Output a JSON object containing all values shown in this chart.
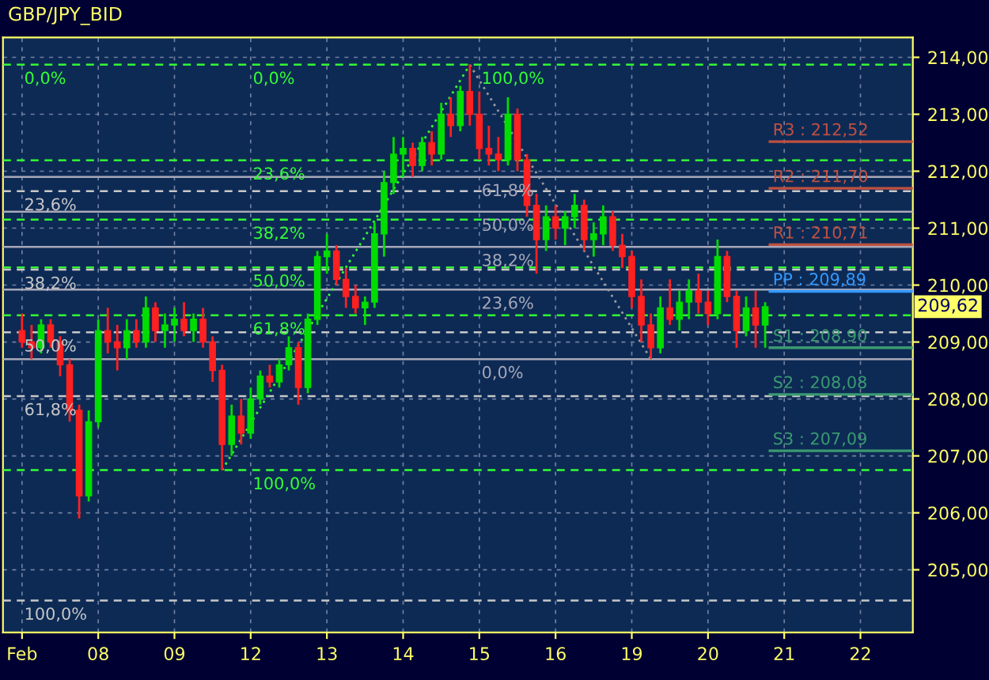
{
  "chart_data": {
    "type": "candlestick",
    "title": "GBP/JPY_BID",
    "categories": [
      "Feb",
      null,
      null,
      null,
      null,
      null,
      null,
      null,
      "08",
      null,
      null,
      null,
      null,
      null,
      null,
      null,
      "09",
      null,
      null,
      null,
      null,
      null,
      null,
      null,
      "12",
      null,
      null,
      null,
      null,
      null,
      null,
      null,
      "13",
      null,
      null,
      null,
      null,
      null,
      null,
      null,
      "14",
      null,
      null,
      null,
      null,
      null,
      null,
      null,
      "15",
      null,
      null,
      null,
      null,
      null,
      null,
      null,
      "16",
      null,
      null,
      null,
      null,
      null,
      null,
      null,
      "19",
      null,
      null,
      null,
      null,
      null,
      null,
      null,
      "20",
      null,
      null,
      null,
      null,
      null,
      null,
      null,
      "21",
      null,
      null,
      null,
      null,
      null,
      null,
      null,
      "22",
      null,
      null,
      null,
      null,
      null
    ],
    "ohlc": [
      [
        209.2,
        209.5,
        208.9,
        209.0
      ],
      [
        209.0,
        209.3,
        208.7,
        208.9
      ],
      [
        208.9,
        209.4,
        208.8,
        209.3
      ],
      [
        209.3,
        209.4,
        208.9,
        209.0
      ],
      [
        209.0,
        209.1,
        208.4,
        208.6
      ],
      [
        208.6,
        208.7,
        207.6,
        207.8
      ],
      [
        207.8,
        207.9,
        205.9,
        206.3
      ],
      [
        206.3,
        207.8,
        206.2,
        207.6
      ],
      [
        207.6,
        209.4,
        207.5,
        209.2
      ],
      [
        209.2,
        209.6,
        208.8,
        209.0
      ],
      [
        209.0,
        209.3,
        208.5,
        208.9
      ],
      [
        208.9,
        209.4,
        208.7,
        209.2
      ],
      [
        209.2,
        209.4,
        208.9,
        209.0
      ],
      [
        209.0,
        209.8,
        208.9,
        209.6
      ],
      [
        209.6,
        209.7,
        209.0,
        209.2
      ],
      [
        209.2,
        209.5,
        208.9,
        209.3
      ],
      [
        209.3,
        209.6,
        209.0,
        209.4
      ],
      [
        209.4,
        209.7,
        209.1,
        209.2
      ],
      [
        209.2,
        209.5,
        209.0,
        209.4
      ],
      [
        209.4,
        209.6,
        208.9,
        209.0
      ],
      [
        209.0,
        209.1,
        208.3,
        208.5
      ],
      [
        208.5,
        208.6,
        206.75,
        207.2
      ],
      [
        207.2,
        207.9,
        207.0,
        207.7
      ],
      [
        207.7,
        208.0,
        207.2,
        207.4
      ],
      [
        207.4,
        208.2,
        207.3,
        208.0
      ],
      [
        208.0,
        208.5,
        207.9,
        208.4
      ],
      [
        208.4,
        208.6,
        208.2,
        208.3
      ],
      [
        208.3,
        208.7,
        208.2,
        208.6
      ],
      [
        208.6,
        209.1,
        208.5,
        208.9
      ],
      [
        208.9,
        209.0,
        207.9,
        208.2
      ],
      [
        208.2,
        209.5,
        208.1,
        209.4
      ],
      [
        209.4,
        210.6,
        209.3,
        210.5
      ],
      [
        210.5,
        210.9,
        210.2,
        210.6
      ],
      [
        210.6,
        210.7,
        210.0,
        210.1
      ],
      [
        210.1,
        210.3,
        209.6,
        209.8
      ],
      [
        209.8,
        210.0,
        209.5,
        209.6
      ],
      [
        209.6,
        209.8,
        209.3,
        209.7
      ],
      [
        209.7,
        211.1,
        209.6,
        210.9
      ],
      [
        210.9,
        212.0,
        210.5,
        211.8
      ],
      [
        211.8,
        212.6,
        211.6,
        212.3
      ],
      [
        212.3,
        212.6,
        211.9,
        212.4
      ],
      [
        212.4,
        212.5,
        211.9,
        212.1
      ],
      [
        212.1,
        212.6,
        212.0,
        212.5
      ],
      [
        212.5,
        212.7,
        212.1,
        212.3
      ],
      [
        212.3,
        213.2,
        212.2,
        213.0
      ],
      [
        213.0,
        213.3,
        212.6,
        212.8
      ],
      [
        212.8,
        213.5,
        212.7,
        213.4
      ],
      [
        213.4,
        213.87,
        212.8,
        213.0
      ],
      [
        213.0,
        213.4,
        212.2,
        212.4
      ],
      [
        212.4,
        212.8,
        212.1,
        212.3
      ],
      [
        212.3,
        212.6,
        212.0,
        212.2
      ],
      [
        212.2,
        213.3,
        212.1,
        213.0
      ],
      [
        213.0,
        213.1,
        212.0,
        212.2
      ],
      [
        212.2,
        212.3,
        211.2,
        211.4
      ],
      [
        211.4,
        211.6,
        210.2,
        210.8
      ],
      [
        210.8,
        211.4,
        210.6,
        211.2
      ],
      [
        211.2,
        211.4,
        210.8,
        211.0
      ],
      [
        211.0,
        211.3,
        210.7,
        211.2
      ],
      [
        211.2,
        211.6,
        211.0,
        211.4
      ],
      [
        211.4,
        211.5,
        210.6,
        210.8
      ],
      [
        210.8,
        211.1,
        210.5,
        210.9
      ],
      [
        210.9,
        211.4,
        210.7,
        211.2
      ],
      [
        211.2,
        211.3,
        210.6,
        210.7
      ],
      [
        210.7,
        210.9,
        210.3,
        210.5
      ],
      [
        210.5,
        210.6,
        209.6,
        209.8
      ],
      [
        209.8,
        210.1,
        209.0,
        209.3
      ],
      [
        209.3,
        209.5,
        208.7,
        208.9
      ],
      [
        208.9,
        209.8,
        208.8,
        209.6
      ],
      [
        209.6,
        210.1,
        209.3,
        209.4
      ],
      [
        209.4,
        209.9,
        209.2,
        209.7
      ],
      [
        209.7,
        210.1,
        209.4,
        209.9
      ],
      [
        209.9,
        210.2,
        209.5,
        209.7
      ],
      [
        209.7,
        209.9,
        209.3,
        209.5
      ],
      [
        209.5,
        210.8,
        209.4,
        210.5
      ],
      [
        210.5,
        210.6,
        209.7,
        209.8
      ],
      [
        209.8,
        209.9,
        208.9,
        209.2
      ],
      [
        209.2,
        209.8,
        209.1,
        209.6
      ],
      [
        209.6,
        209.9,
        208.9,
        209.3
      ],
      [
        209.3,
        209.7,
        208.9,
        209.62
      ],
      null,
      null,
      null,
      null,
      null,
      null,
      null,
      null,
      null,
      null,
      null,
      null,
      null,
      null,
      null
    ],
    "colors": [
      "#ff2020",
      "#ff2020",
      "#00dd00",
      "#ff2020",
      "#ff2020",
      "#ff2020",
      "#ff2020",
      "#00dd00",
      "#00dd00",
      "#ff2020",
      "#ff2020",
      "#00dd00",
      "#ff2020",
      "#00dd00",
      "#ff2020",
      "#00dd00",
      "#00dd00",
      "#ff2020",
      "#00dd00",
      "#ff2020",
      "#ff2020",
      "#ff2020",
      "#00dd00",
      "#ff2020",
      "#00dd00",
      "#00dd00",
      "#ff2020",
      "#00dd00",
      "#00dd00",
      "#ff2020",
      "#00dd00",
      "#00dd00",
      "#00dd00",
      "#ff2020",
      "#ff2020",
      "#ff2020",
      "#00dd00",
      "#00dd00",
      "#00dd00",
      "#00dd00",
      "#00dd00",
      "#ff2020",
      "#00dd00",
      "#ff2020",
      "#00dd00",
      "#ff2020",
      "#00dd00",
      "#ff2020",
      "#ff2020",
      "#ff2020",
      "#ff2020",
      "#00dd00",
      "#ff2020",
      "#ff2020",
      "#ff2020",
      "#00dd00",
      "#ff2020",
      "#00dd00",
      "#00dd00",
      "#ff2020",
      "#00dd00",
      "#00dd00",
      "#ff2020",
      "#ff2020",
      "#ff2020",
      "#ff2020",
      "#ff2020",
      "#00dd00",
      "#ff2020",
      "#00dd00",
      "#00dd00",
      "#ff2020",
      "#ff2020",
      "#00dd00",
      "#ff2020",
      "#ff2020",
      "#00dd00",
      "#ff2020",
      "#00dd00",
      null,
      null,
      null,
      null,
      null,
      null,
      null,
      null,
      null,
      null,
      null,
      null,
      null,
      null,
      null
    ],
    "value_labels": [
      null,
      null,
      null,
      null,
      null,
      null,
      null,
      null,
      null,
      null,
      null,
      null,
      null,
      null,
      null,
      null,
      null,
      null,
      null,
      null,
      null,
      null,
      null,
      null,
      null,
      null,
      null,
      null,
      null,
      null,
      null,
      null,
      null,
      null,
      null,
      null,
      null,
      null,
      null,
      null,
      null,
      null,
      null,
      null,
      null,
      null,
      null,
      null,
      null,
      null,
      null,
      null,
      null,
      null,
      null,
      null,
      null,
      null,
      null,
      null,
      null,
      null,
      null,
      null,
      null,
      null,
      null,
      null,
      null,
      null,
      null,
      null,
      null,
      null,
      null,
      null,
      null,
      null,
      "209,62",
      null,
      null,
      null,
      null,
      null,
      null,
      null,
      null,
      null,
      null,
      null,
      null,
      null,
      null,
      null
    ],
    "series": [
      {
        "type": "line",
        "color": "#33ff33",
        "line_style": "dotted",
        "values": [
          null,
          null,
          null,
          null,
          null,
          null,
          null,
          null,
          null,
          null,
          null,
          null,
          null,
          null,
          null,
          null,
          null,
          null,
          null,
          null,
          null,
          206.75,
          null,
          null,
          null,
          null,
          null,
          null,
          null,
          null,
          null,
          null,
          null,
          null,
          null,
          null,
          null,
          null,
          null,
          null,
          null,
          null,
          null,
          null,
          null,
          null,
          null,
          213.87,
          null,
          null,
          null,
          null,
          null,
          null,
          null,
          null,
          null,
          null,
          null,
          null,
          null,
          null,
          null,
          null,
          null,
          null,
          null,
          null,
          null,
          null,
          null,
          null,
          null,
          null,
          null,
          null,
          null,
          null,
          null,
          null,
          null,
          null,
          null,
          null,
          null,
          null,
          null,
          null,
          null,
          null,
          null,
          null,
          null,
          null
        ]
      },
      {
        "type": "line",
        "color": "#9a9a9a",
        "line_style": "dotted",
        "values": [
          null,
          null,
          null,
          null,
          null,
          null,
          null,
          null,
          null,
          null,
          null,
          null,
          null,
          null,
          null,
          null,
          null,
          null,
          null,
          null,
          null,
          null,
          null,
          null,
          null,
          null,
          null,
          null,
          null,
          null,
          null,
          null,
          null,
          null,
          null,
          null,
          null,
          null,
          null,
          null,
          null,
          null,
          null,
          null,
          null,
          null,
          null,
          213.87,
          null,
          null,
          null,
          null,
          null,
          null,
          null,
          null,
          null,
          null,
          null,
          null,
          null,
          null,
          null,
          null,
          null,
          null,
          208.7,
          null,
          null,
          null,
          null,
          null,
          null,
          null,
          null,
          null,
          null,
          null,
          null,
          null,
          null,
          null,
          null,
          null,
          null,
          null,
          null,
          null,
          null,
          null,
          null,
          null,
          null,
          null
        ]
      }
    ],
    "ylim": [
      203.9,
      214.35
    ],
    "yticks": [
      {
        "value": 205,
        "label": "205,00"
      },
      {
        "value": 206,
        "label": "206,00"
      },
      {
        "value": 207,
        "label": "207,00"
      },
      {
        "value": 208,
        "label": "208,00"
      },
      {
        "value": 209,
        "label": "209,00"
      },
      {
        "value": 210,
        "label": "210,00"
      },
      {
        "value": 211,
        "label": "211,00"
      },
      {
        "value": 212,
        "label": "212,00"
      },
      {
        "value": 213,
        "label": "213,00"
      },
      {
        "value": 214,
        "label": "214,00"
      }
    ],
    "grid": true,
    "ref_lines": [
      {
        "axis": "y",
        "value": 213.87,
        "color": "#33ff33",
        "line_style": "dashed"
      },
      {
        "axis": "y",
        "value": 212.19,
        "color": "#33ff33",
        "line_style": "dashed"
      },
      {
        "axis": "y",
        "value": 211.15,
        "color": "#33ff33",
        "line_style": "dashed"
      },
      {
        "axis": "y",
        "value": 210.31,
        "color": "#33ff33",
        "line_style": "dashed"
      },
      {
        "axis": "y",
        "value": 209.47,
        "color": "#33ff33",
        "line_style": "dashed"
      },
      {
        "axis": "y",
        "value": 206.75,
        "color": "#33ff33",
        "line_style": "dashed"
      },
      {
        "axis": "y",
        "value": 211.65,
        "color": "#c8c8c8",
        "line_style": "dashed"
      },
      {
        "axis": "y",
        "value": 210.27,
        "color": "#c8c8c8",
        "line_style": "dashed"
      },
      {
        "axis": "y",
        "value": 209.17,
        "color": "#c8c8c8",
        "line_style": "dashed"
      },
      {
        "axis": "y",
        "value": 208.05,
        "color": "#c8c8c8",
        "line_style": "dashed"
      },
      {
        "axis": "y",
        "value": 204.46,
        "color": "#c8c8c8",
        "line_style": "dashed"
      },
      {
        "axis": "y",
        "value": 211.9,
        "color": "#a8a8b8",
        "line_style": "solid"
      },
      {
        "axis": "y",
        "value": 211.29,
        "color": "#a8a8b8",
        "line_style": "solid"
      },
      {
        "axis": "y",
        "value": 210.67,
        "color": "#a8a8b8",
        "line_style": "solid"
      },
      {
        "axis": "y",
        "value": 209.92,
        "color": "#a8a8b8",
        "line_style": "solid"
      },
      {
        "axis": "y",
        "value": 208.7,
        "color": "#a8a8b8",
        "line_style": "solid"
      },
      {
        "axis": "y",
        "value": 212.52,
        "label": "R3 : 212,52",
        "color": "#c05040",
        "line_style": "solid"
      },
      {
        "axis": "y",
        "value": 211.7,
        "label": "R2 : 211,70",
        "color": "#c05040",
        "line_style": "solid"
      },
      {
        "axis": "y",
        "value": 210.71,
        "label": "R1 : 210,71",
        "color": "#c05040",
        "line_style": "solid"
      },
      {
        "axis": "y",
        "value": 209.89,
        "label": "PP : 209,89",
        "color": "#3399ff",
        "line_style": "solid"
      },
      {
        "axis": "y",
        "value": 208.9,
        "label": "S1 : 208,90",
        "color": "#3a9a70",
        "line_style": "solid"
      },
      {
        "axis": "y",
        "value": 208.08,
        "label": "S2 : 208,08",
        "color": "#3a9a70",
        "line_style": "solid"
      },
      {
        "axis": "y",
        "value": 207.09,
        "label": "S3 : 207,09",
        "color": "#3a9a70",
        "line_style": "solid"
      }
    ],
    "annotations": [
      {
        "text": "0,0%",
        "x": "Feb",
        "y": 213.87
      },
      {
        "text": "23,6%",
        "x": "Feb",
        "y": 211.65
      },
      {
        "text": "38,2%",
        "x": "Feb",
        "y": 210.27
      },
      {
        "text": "50,0%",
        "x": "Feb",
        "y": 209.17
      },
      {
        "text": "61,8%",
        "x": "Feb",
        "y": 208.05
      },
      {
        "text": "100,0%",
        "x": "Feb",
        "y": 204.46
      },
      {
        "text": "0,0%",
        "x": "12",
        "y": 213.87
      },
      {
        "text": "23,6%",
        "x": "12",
        "y": 212.19
      },
      {
        "text": "38,2%",
        "x": "12",
        "y": 211.15
      },
      {
        "text": "50,0%",
        "x": "12",
        "y": 210.31
      },
      {
        "text": "61,8%",
        "x": "12",
        "y": 209.47
      },
      {
        "text": "100,0%",
        "x": "12",
        "y": 206.75
      },
      {
        "text": "100,0%",
        "x": "15",
        "y": 213.87
      },
      {
        "text": "61,8%",
        "x": "15",
        "y": 211.9
      },
      {
        "text": "50,0%",
        "x": "15",
        "y": 211.29
      },
      {
        "text": "38,2%",
        "x": "15",
        "y": 210.67
      },
      {
        "text": "23,6%",
        "x": "15",
        "y": 209.92
      },
      {
        "text": "0,0%",
        "x": "15",
        "y": 208.7
      }
    ]
  }
}
